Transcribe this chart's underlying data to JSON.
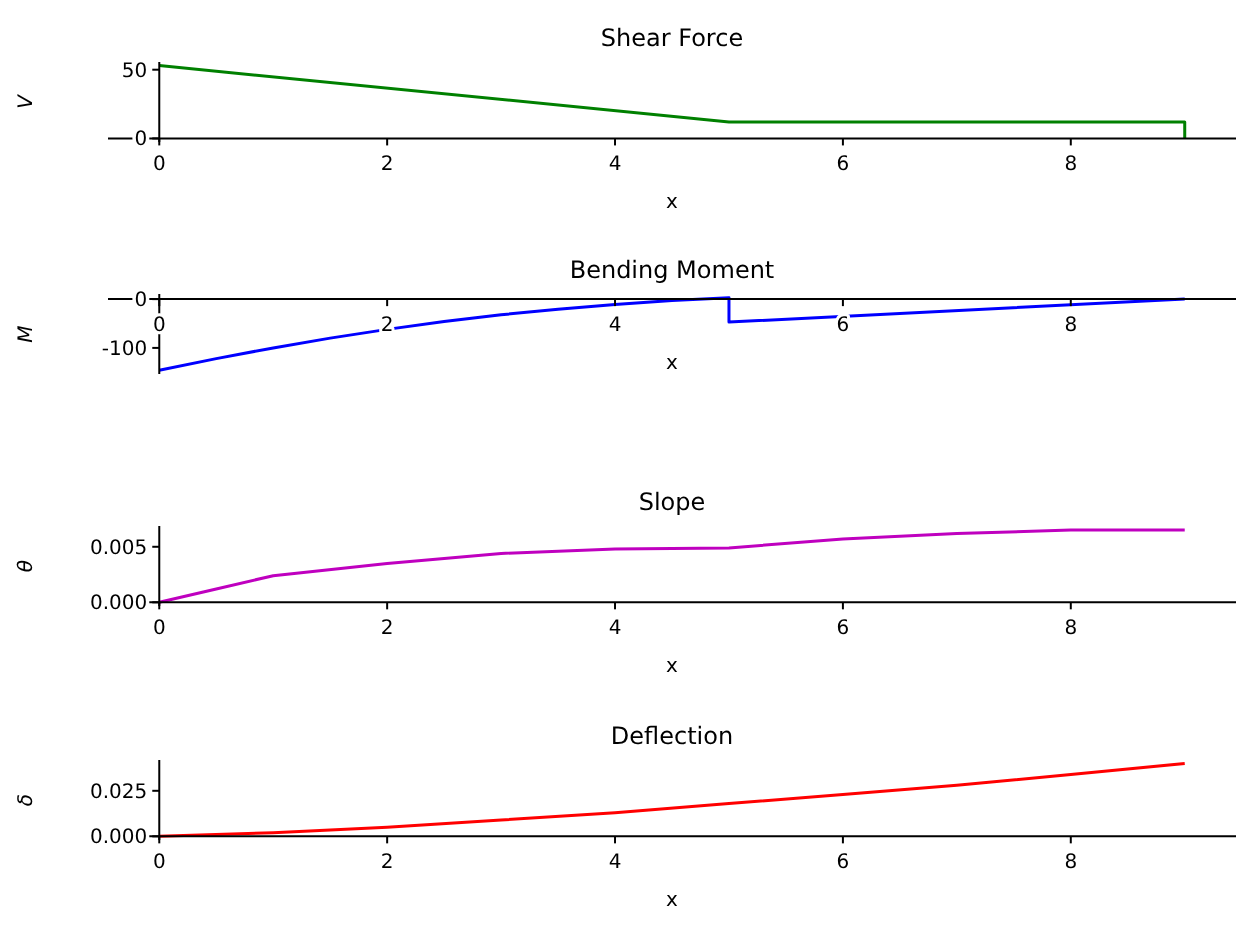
{
  "chart_data": [
    {
      "type": "line",
      "title": "Shear Force",
      "xlabel": "x",
      "ylabel": "V",
      "xlim": [
        -0.45,
        9.45
      ],
      "ylim": [
        -2.6,
        55.6
      ],
      "xticks": [
        0,
        2,
        4,
        6,
        8
      ],
      "yticks": [
        0,
        50
      ],
      "grid": false,
      "x": [
        0,
        5,
        9,
        9
      ],
      "series": [
        {
          "color": "#008000",
          "values": [
            53,
            12,
            12,
            0
          ]
        }
      ]
    },
    {
      "type": "line",
      "title": "Bending Moment",
      "xlabel": "x",
      "ylabel": "M",
      "xlim": [
        -0.45,
        9.45
      ],
      "ylim": [
        -153.5,
        10.5
      ],
      "xticks": [
        0,
        2,
        4,
        6,
        8
      ],
      "yticks": [
        -100,
        0
      ],
      "grid": false,
      "x": [
        0,
        0.5,
        1,
        1.5,
        2,
        2.5,
        3,
        3.5,
        4,
        4.5,
        5,
        5,
        9
      ],
      "series": [
        {
          "color": "#0000ff",
          "values": [
            -146,
            -122,
            -100,
            -80,
            -62,
            -46,
            -32,
            -21,
            -11,
            -3,
            3,
            -47,
            0
          ]
        }
      ]
    },
    {
      "type": "line",
      "title": "Slope",
      "xlabel": "x",
      "ylabel": "θ",
      "xlim": [
        -0.45,
        9.45
      ],
      "ylim": [
        -0.00033,
        0.00687
      ],
      "xticks": [
        0,
        2,
        4,
        6,
        8
      ],
      "yticks": [
        {
          "value": 0,
          "label": "0.000"
        },
        0.005
      ],
      "grid": false,
      "x": [
        0,
        0.5,
        1,
        2,
        3,
        4,
        5,
        6,
        7,
        8,
        9
      ],
      "series": [
        {
          "color": "#bf00bf",
          "values": [
            0,
            0.0012,
            0.0024,
            0.0035,
            0.0044,
            0.0048,
            0.0049,
            0.0057,
            0.0062,
            0.0065,
            0.0065
          ]
        }
      ]
    },
    {
      "type": "line",
      "title": "Deflection",
      "xlabel": "x",
      "ylabel": "δ",
      "xlim": [
        -0.45,
        9.45
      ],
      "ylim": [
        -0.002,
        0.0419
      ],
      "xticks": [
        0,
        2,
        4,
        6,
        8
      ],
      "yticks": [
        {
          "value": 0,
          "label": "0.000"
        },
        0.025
      ],
      "grid": false,
      "x": [
        0,
        1,
        2,
        3,
        4,
        5,
        6,
        7,
        8,
        9
      ],
      "series": [
        {
          "color": "#ff0000",
          "values": [
            0,
            0.002,
            0.005,
            0.009,
            0.013,
            0.018,
            0.023,
            0.028,
            0.034,
            0.04
          ]
        }
      ]
    }
  ]
}
